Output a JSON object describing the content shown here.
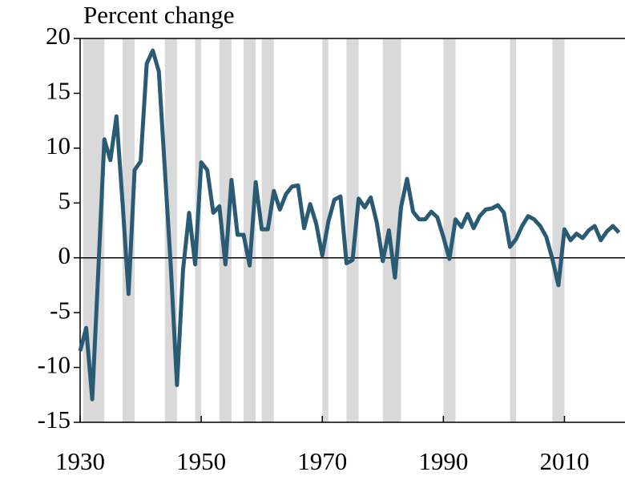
{
  "chart_data": {
    "type": "line",
    "title": "Percent change",
    "x": [
      1930,
      1931,
      1932,
      1933,
      1934,
      1935,
      1936,
      1937,
      1938,
      1939,
      1940,
      1941,
      1942,
      1943,
      1944,
      1945,
      1946,
      1947,
      1948,
      1949,
      1950,
      1951,
      1952,
      1953,
      1954,
      1955,
      1956,
      1957,
      1958,
      1959,
      1960,
      1961,
      1962,
      1963,
      1964,
      1965,
      1966,
      1967,
      1968,
      1969,
      1970,
      1971,
      1972,
      1973,
      1974,
      1975,
      1976,
      1977,
      1978,
      1979,
      1980,
      1981,
      1982,
      1983,
      1984,
      1985,
      1986,
      1987,
      1988,
      1989,
      1990,
      1991,
      1992,
      1993,
      1994,
      1995,
      1996,
      1997,
      1998,
      1999,
      2000,
      2001,
      2002,
      2003,
      2004,
      2005,
      2006,
      2007,
      2008,
      2009,
      2010,
      2011,
      2012,
      2013,
      2014,
      2015,
      2016,
      2017,
      2018,
      2019
    ],
    "series": [
      {
        "color": "#2a5b74",
        "values": [
          -8.5,
          -6.4,
          -12.9,
          -1.2,
          10.8,
          8.9,
          12.9,
          5.1,
          -3.3,
          8.0,
          8.8,
          17.7,
          18.9,
          17.0,
          8.0,
          -1.0,
          -11.6,
          -1.1,
          4.1,
          -0.6,
          8.7,
          8.0,
          4.1,
          4.7,
          -0.6,
          7.1,
          2.1,
          2.1,
          -0.7,
          6.9,
          2.6,
          2.6,
          6.1,
          4.4,
          5.8,
          6.5,
          6.6,
          2.7,
          4.9,
          3.1,
          0.2,
          3.3,
          5.3,
          5.6,
          -0.5,
          -0.2,
          5.4,
          4.6,
          5.5,
          3.2,
          -0.3,
          2.5,
          -1.8,
          4.6,
          7.2,
          4.2,
          3.5,
          3.5,
          4.2,
          3.7,
          1.9,
          -0.1,
          3.5,
          2.8,
          4.0,
          2.7,
          3.8,
          4.4,
          4.5,
          4.8,
          4.1,
          1.0,
          1.7,
          2.9,
          3.8,
          3.5,
          2.9,
          1.9,
          -0.1,
          -2.5,
          2.6,
          1.6,
          2.2,
          1.8,
          2.5,
          2.9,
          1.6,
          2.4,
          2.9,
          2.3
        ]
      }
    ],
    "shaded_periods": [
      [
        1930.5,
        1934
      ],
      [
        1937,
        1939
      ],
      [
        1944,
        1946
      ],
      [
        1949,
        1950
      ],
      [
        1953,
        1955
      ],
      [
        1957,
        1959
      ],
      [
        1960,
        1962
      ],
      [
        1970,
        1971
      ],
      [
        1974,
        1976
      ],
      [
        1980,
        1983
      ],
      [
        1990,
        1992
      ],
      [
        2001,
        2002
      ],
      [
        2008,
        2010
      ]
    ],
    "shade_color": "#d9d9d9",
    "xlim": [
      1930,
      2020
    ],
    "xticks": [
      1930,
      1950,
      1970,
      1990,
      2010
    ],
    "ylim": [
      -15,
      20
    ],
    "yticks": [
      -15,
      -10,
      -5,
      0,
      5,
      10,
      15,
      20
    ]
  }
}
